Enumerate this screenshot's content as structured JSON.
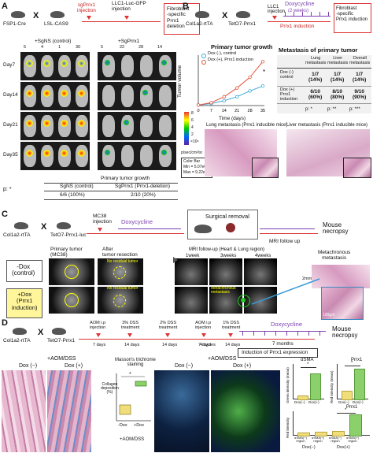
{
  "panelA": {
    "letter": "A",
    "mouse1": "FSP1-Cre",
    "mouse2": "LSL-CAS9",
    "cross": "X",
    "sg_injection": "sgPrrx1\ninjection",
    "llc_injection": "LLC1-Luc-GFP\ninjection",
    "outcome": "Fibroblast\n-specific\nPrrx1\ndeletion",
    "group_control": "+SgNS (control)",
    "group_sg": "+SgPrrx1",
    "ids_control": [
      "5",
      "4",
      "1",
      "30"
    ],
    "ids_sg": [
      "5",
      "22",
      "28",
      "14"
    ],
    "days": [
      "Day7",
      "Day14",
      "Day21",
      "Day35"
    ],
    "colorbar_ticks": [
      "8",
      "6",
      "4",
      "2"
    ],
    "colorbar_exp": "×10⁶",
    "colorbar_unit": "p/sec/cm²/sr",
    "colorbar_box": [
      "Color Bar",
      "Min = 5.07e6",
      "Max = 9.22e7"
    ],
    "growth_title": "Primary tumor growth",
    "pvalue": "p: *",
    "ctrl_label": "SgNS (control)",
    "ctrl_value": "6/6 (100%)",
    "sg_label": "SgPrrx1 (Prrx1-deletion)",
    "sg_value": "2/10 (20%)"
  },
  "panelB": {
    "letter": "B",
    "mouse1": "Col1a2-rtTA",
    "mouse2": "TetO7-Prrx1",
    "cross": "X",
    "llc_injection": "LLC1\ninjection",
    "dox": "Doxycycline",
    "dox_duration": "(2 weeks)",
    "induction": "Prrx1 induction",
    "outcome": "Fibroblast\n-specific\nPrrx1 induction",
    "chart_title": "Primary tumor growth",
    "chart_ylabel": "Tumor volume",
    "chart_xlabel": "Time (days)",
    "star": "*",
    "meta_title": "Metastasis of primary tumor",
    "meta_headers": [
      "Lung\nmetastasis",
      "Liver\nmetastasis",
      "Overall\nmetastasis"
    ],
    "meta_rows": [
      {
        "label": "Dox (-)\ncontrol",
        "vals": [
          "1/7\n(14%)",
          "1/7\n(14%)",
          "1/7\n(14%)"
        ]
      },
      {
        "label": "Dox (+)\nPrrx1\ninduction",
        "vals": [
          "6/10\n(60%)",
          "8/10\n(80%)",
          "9/10\n(90%)"
        ]
      }
    ],
    "meta_p": [
      "p: *",
      "p: **",
      "p: ***"
    ],
    "lung_caption": "Lung metastasis (Prrx1 inducible mice)",
    "liver_caption": "Liver metastasis (Prrx1 inducible mice)"
  },
  "chart_data": {
    "type": "line",
    "title": "Primary tumor growth",
    "xlabel": "Time (days)",
    "ylabel": "Tumor volume",
    "x": [
      0,
      7,
      14,
      21,
      28,
      35
    ],
    "xticks": [
      "0",
      "7",
      "14",
      "21",
      "28",
      "35"
    ],
    "xlim": [
      0,
      35
    ],
    "ylim": [
      0,
      5
    ],
    "series": [
      {
        "name": "Dox (-), control",
        "color": "#39a9d6",
        "values": [
          0.05,
          0.2,
          0.5,
          0.9,
          1.5,
          2.0
        ]
      },
      {
        "name": "Dox (+), Prrx1 induction",
        "color": "#e8523a",
        "values": [
          0.05,
          0.3,
          0.9,
          1.8,
          2.9,
          4.5
        ]
      }
    ],
    "legend": "top-left"
  },
  "panelC": {
    "letter": "C",
    "mouse1": "Col1a2-rtTA",
    "mouse2": "TetO7-Prrx1-luc",
    "cross": "X",
    "mc38": "MC38\ninjection",
    "dox": "Doxycycline",
    "surgical": "Surgical removal",
    "mri_follow": "MRI follow up",
    "necropsy": "Mouse\nnecropsy",
    "col_primary": "Primary tumor\n(MC38)",
    "col_after": "After\ntumor resection",
    "col_mri": "MRI follow-up (Heart & Lung region)",
    "weeks": [
      "1week",
      "3weeks",
      "4weeks"
    ],
    "row_control": "-Dox\n(control)",
    "row_dox": "+Dox\n(Prrx1\ninduction)",
    "no_residual": "No residual tumor",
    "metachronous_label": "Metachronous\nmetastasis",
    "metachronous_title": "Metachronous\nmetastasis",
    "scale1": "2mm",
    "scale2": "100μm"
  },
  "panelD": {
    "letter": "D",
    "mouse1": "Col1a2-rtTA",
    "mouse2": "TetO7-Prrx1",
    "cross": "X",
    "steps": [
      "AOM i.p\ninjection",
      "3% DSS\ntreatment",
      "2% DSS\ntreatment",
      "AOM i.p\ninjection",
      "1% DSS\ntreatment"
    ],
    "intervals": [
      "7 days",
      "14 days",
      "14 days",
      "7 days",
      "14 days"
    ],
    "cycles": "4 cycles",
    "dox": "Doxycycline",
    "months": "7 months",
    "induction": "Induction of Prrx1 expression",
    "necropsy": "Mouse\nnecropsy",
    "aom_dss_left": "+AOM/DSS",
    "dox_minus": "Dox (−)",
    "dox_plus": "Dox (+)",
    "massons": "Masson's trichrome\nstaining",
    "collagen_ylabel": "Collagen\ndeposition\n(%)",
    "box_xlabels": [
      "-Dox",
      "+Dox"
    ],
    "box_caption": "+AOM/DSS",
    "aom_dss_mid": "+AOM/DSS",
    "sma_title": "αSMA",
    "prrx1_title": "Prrx1",
    "prrx1_title2": "Prrx1",
    "green_ylabel": "Green intensity (mean)",
    "red_ylabel": "Red intensity (mean)",
    "red_ylabel2": "Red intensity",
    "bar_x": [
      "Dox(−)",
      "Dox(+)"
    ],
    "bottom_x": [
      "αSMA(−)\nregion",
      "αSMA(+)\nregion",
      "αSMA(−)\nregion",
      "αSMA(+)\nregion"
    ],
    "bottom_groups": [
      "Dox(−)",
      "Dox(+)"
    ],
    "star": "*"
  }
}
